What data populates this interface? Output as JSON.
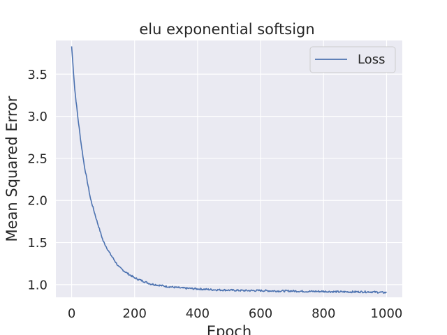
{
  "chart_data": {
    "type": "line",
    "title": "elu exponential softsign",
    "xlabel": "Epoch",
    "ylabel": "Mean Squared Error",
    "xlim": [
      -50,
      1050
    ],
    "ylim": [
      0.85,
      3.9
    ],
    "xticks": [
      0,
      200,
      400,
      600,
      800,
      1000
    ],
    "yticks": [
      1.0,
      1.5,
      2.0,
      2.5,
      3.0,
      3.5
    ],
    "xtick_labels": [
      "0",
      "200",
      "400",
      "600",
      "800",
      "1000"
    ],
    "ytick_labels": [
      "1.0",
      "1.5",
      "2.0",
      "2.5",
      "3.0",
      "3.5"
    ],
    "grid": true,
    "legend_position": "top-right",
    "background": "#eaeaf2",
    "series": [
      {
        "name": "Loss",
        "color": "#4c72b0",
        "x": [
          0,
          10,
          20,
          30,
          40,
          50,
          60,
          80,
          100,
          120,
          150,
          175,
          200,
          250,
          300,
          350,
          400,
          450,
          500,
          550,
          600,
          650,
          700,
          750,
          800,
          850,
          900,
          950,
          1000
        ],
        "y": [
          3.83,
          3.32,
          2.98,
          2.68,
          2.42,
          2.22,
          2.02,
          1.76,
          1.52,
          1.38,
          1.21,
          1.14,
          1.08,
          1.01,
          0.98,
          0.96,
          0.95,
          0.94,
          0.935,
          0.93,
          0.93,
          0.925,
          0.925,
          0.92,
          0.92,
          0.915,
          0.915,
          0.915,
          0.905
        ]
      }
    ]
  }
}
